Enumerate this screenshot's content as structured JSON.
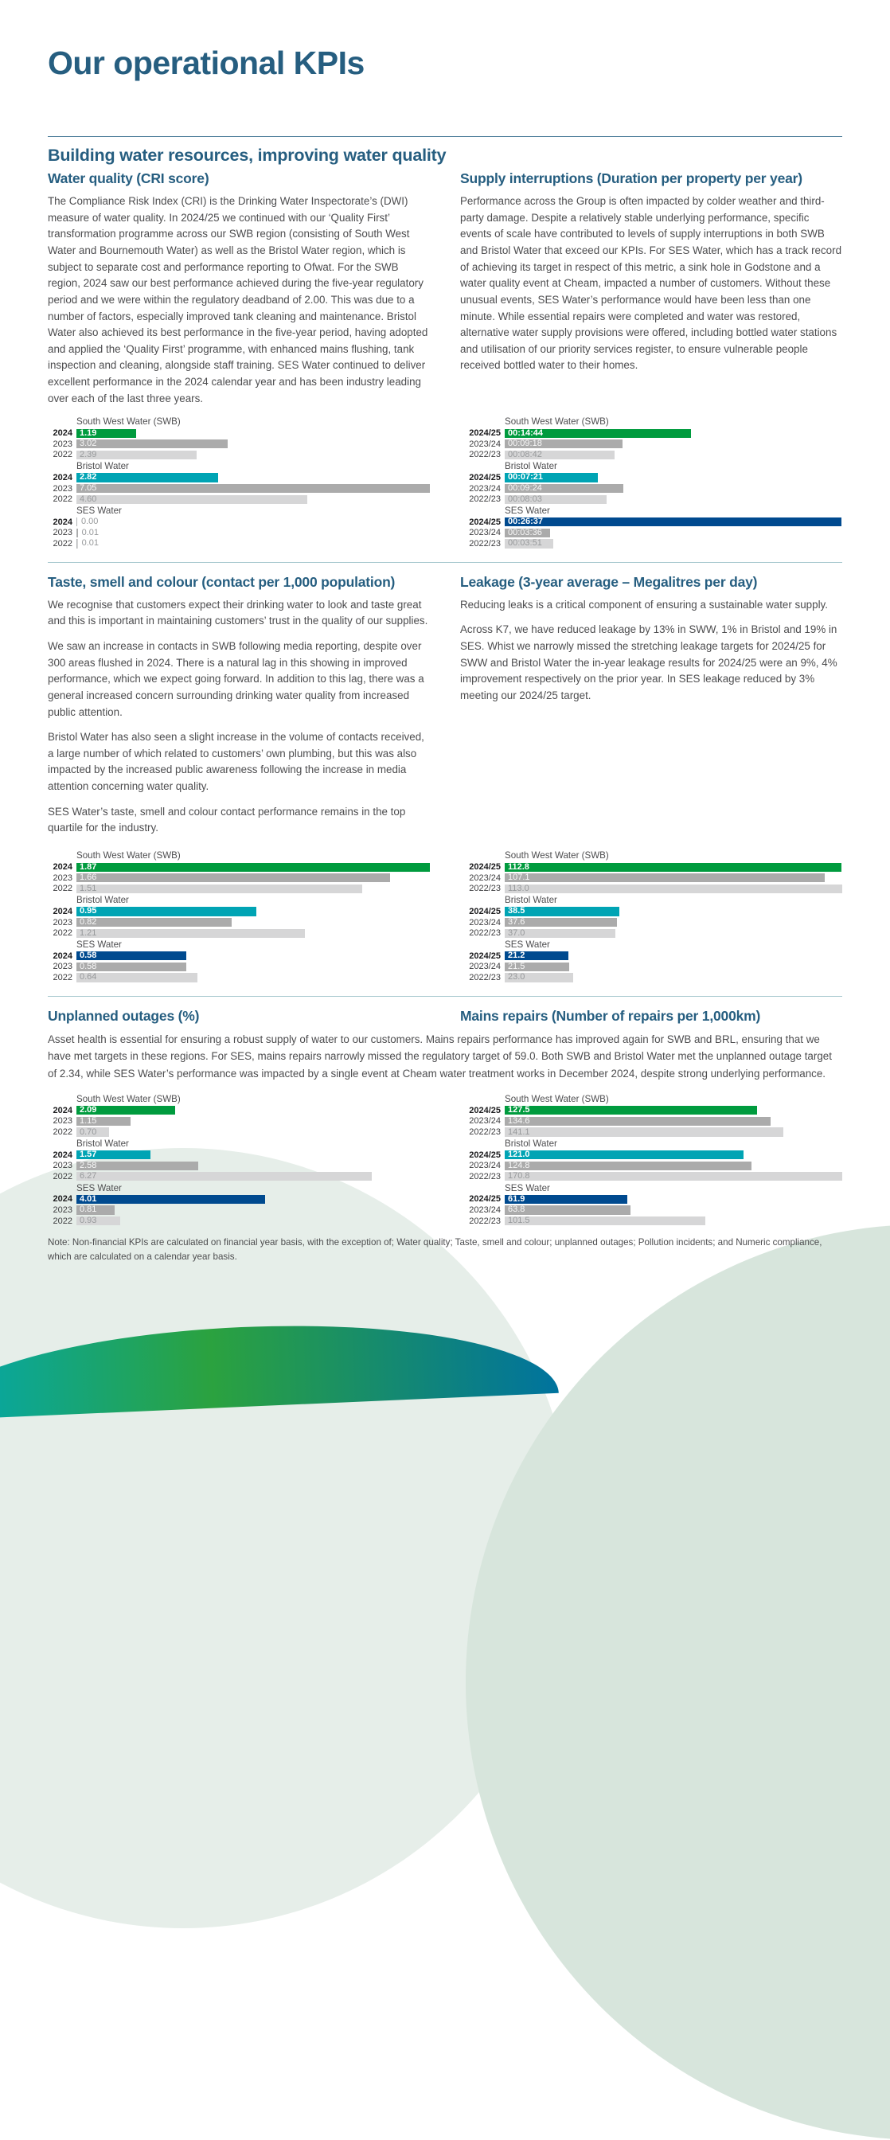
{
  "page": {
    "title": "Our operational KPIs",
    "section_heading": "Building water resources, improving water quality",
    "note": "Note: Non-financial KPIs are calculated on financial year basis, with the exception of; Water quality; Taste, smell and colour; unplanned outages; Pollution incidents; and Numeric compliance, which are calculated on a calendar year basis."
  },
  "colors": {
    "green": "#009b3e",
    "teal": "#00a4b4",
    "blue": "#004a8f",
    "gray": "#ababab",
    "lightgray": "#d6d6d7",
    "heading_blue": "#265e80"
  },
  "sections": [
    {
      "heading": "Water quality (CRI score)",
      "paragraphs": [
        "The Compliance Risk Index (CRI) is the Drinking Water Inspectorate’s (DWI) measure of water quality. In 2024/25 we continued with our ‘Quality First’ transformation programme across our SWB region (consisting of South West Water and Bournemouth Water) as well as the Bristol Water region, which is subject to separate cost and performance reporting to Ofwat. For the SWB region, 2024 saw our best performance achieved during the five-year regulatory period and we were within the regulatory deadband of 2.00. This was due to a number of factors, especially improved tank cleaning and maintenance. Bristol Water also achieved its best performance in the five-year period, having adopted and applied the ‘Quality First’ programme, with enhanced mains flushing, tank inspection and cleaning, alongside staff training. SES Water continued to deliver excellent performance in the 2024 calendar year and has been industry leading over each of the last three years."
      ]
    },
    {
      "heading": "Supply interruptions (Duration per property per year)",
      "paragraphs": [
        "Performance across the Group is often impacted by colder weather and third-party damage. Despite a relatively stable underlying performance, specific events of scale have contributed to levels of supply interruptions in both SWB and Bristol Water that exceed our KPIs. For SES Water, which has a track record of achieving its target in respect of this metric, a sink hole in Godstone and a water quality event at Cheam, impacted a number of customers. Without these unusual events, SES Water’s performance would have been less than one minute. While essential repairs were completed and water was restored, alternative water supply provisions were offered, including bottled water stations and utilisation of our priority services register, to ensure vulnerable people received bottled water to their homes."
      ]
    },
    {
      "heading": "Taste, smell and colour (contact per 1,000 population)",
      "paragraphs": [
        "We recognise that customers expect their drinking water to look and taste great and this is important in maintaining customers’ trust in the quality of our supplies.",
        "We saw an increase in contacts in SWB following media reporting, despite over 300 areas flushed in 2024. There is a natural lag in this showing in improved performance, which we expect going forward. In addition to this lag, there was a general increased concern surrounding drinking water quality from increased public attention.",
        "Bristol Water has also seen a slight increase in the volume of contacts received, a large number of which related to customers’ own plumbing, but this was also impacted by the increased public awareness following the increase in media attention concerning water quality.",
        "SES Water’s taste, smell and colour contact performance remains in the top quartile for the industry."
      ]
    },
    {
      "heading": "Leakage (3-year average – Megalitres per day)",
      "paragraphs": [
        "Reducing leaks is a critical component of ensuring a sustainable water supply.",
        "Across K7, we have reduced leakage by 13% in SWW, 1% in Bristol and 19% in SES. Whist we narrowly missed the stretching leakage targets for 2024/25 for SWW and Bristol Water the in-year leakage results for 2024/25 were an 9%, 4% improvement respectively on the prior year. In SES leakage reduced by 3% meeting our 2024/25 target."
      ]
    },
    {
      "heading": "Unplanned outages (%)",
      "paragraphs": [
        "Asset health is essential for ensuring a robust supply of water to our customers. Mains repairs performance has improved again for SWB and BRL, ensuring that we have met targets in these regions. For SES, mains repairs narrowly missed the regulatory target of 59.0. Both SWB and Bristol Water met the unplanned outage target of 2.34, while SES Water’s performance was impacted by a single event at Cheam water treatment works in December 2024, despite strong underlying performance."
      ]
    },
    {
      "heading": "Mains repairs (Number of repairs per 1,000km)",
      "paragraphs": []
    }
  ],
  "chart_data": [
    {
      "type": "bar",
      "title": "Water quality (CRI score)",
      "axis_max": 7.05,
      "years": [
        "2024",
        "2023",
        "2022"
      ],
      "groups": [
        {
          "name": "South West Water (SWB)",
          "accent": "green",
          "labels": [
            "1.19",
            "3.02",
            "2.39"
          ],
          "values": [
            1.19,
            3.02,
            2.39
          ]
        },
        {
          "name": "Bristol Water",
          "accent": "teal",
          "labels": [
            "2.82",
            "7.05",
            "4.60"
          ],
          "values": [
            2.82,
            7.05,
            4.6
          ]
        },
        {
          "name": "SES Water",
          "accent": "blue",
          "labels": [
            "0.00",
            "0.01",
            "0.01"
          ],
          "values": [
            0.0,
            0.01,
            0.01
          ]
        }
      ]
    },
    {
      "type": "bar",
      "title": "Supply interruptions (Duration per property per year)",
      "axis_max": 1600,
      "unit": "hh:mm:ss (values scaled in seconds)",
      "years": [
        "2024/25",
        "2023/24",
        "2022/23"
      ],
      "groups": [
        {
          "name": "South West Water (SWB)",
          "accent": "green",
          "labels": [
            "00:14:44",
            "00:09:18",
            "00:08:42"
          ],
          "values": [
            884,
            558,
            522
          ]
        },
        {
          "name": "Bristol Water",
          "accent": "teal",
          "labels": [
            "00:07:21",
            "00:09:24",
            "00:08:03"
          ],
          "values": [
            441,
            564,
            483
          ]
        },
        {
          "name": "SES Water",
          "accent": "blue",
          "labels": [
            "00:26:37",
            "00:03:36",
            "00:03:51"
          ],
          "values": [
            1597,
            216,
            231
          ]
        }
      ]
    },
    {
      "type": "bar",
      "title": "Taste, smell and colour (contact per 1,000 population)",
      "axis_max": 1.87,
      "years": [
        "2024",
        "2023",
        "2022"
      ],
      "groups": [
        {
          "name": "South West Water (SWB)",
          "accent": "green",
          "labels": [
            "1.87",
            "1.66",
            "1.51"
          ],
          "values": [
            1.87,
            1.66,
            1.51
          ]
        },
        {
          "name": "Bristol Water",
          "accent": "teal",
          "labels": [
            "0.95",
            "0.82",
            "1.21"
          ],
          "values": [
            0.95,
            0.82,
            1.21
          ]
        },
        {
          "name": "SES Water",
          "accent": "blue",
          "labels": [
            "0.58",
            "0.58",
            "0.64"
          ],
          "values": [
            0.58,
            0.58,
            0.64
          ]
        }
      ]
    },
    {
      "type": "bar",
      "title": "Leakage (3-year average – Megalitres per day)",
      "axis_max": 113.0,
      "years": [
        "2024/25",
        "2023/24",
        "2022/23"
      ],
      "groups": [
        {
          "name": "South West Water (SWB)",
          "accent": "green",
          "labels": [
            "112.8",
            "107.1",
            "113.0"
          ],
          "values": [
            112.8,
            107.1,
            113.0
          ]
        },
        {
          "name": "Bristol Water",
          "accent": "teal",
          "labels": [
            "38.5",
            "37.6",
            "37.0"
          ],
          "values": [
            38.5,
            37.6,
            37.0
          ]
        },
        {
          "name": "SES Water",
          "accent": "blue",
          "labels": [
            "21.2",
            "21.5",
            "23.0"
          ],
          "values": [
            21.2,
            21.5,
            23.0
          ]
        }
      ]
    },
    {
      "type": "bar",
      "title": "Unplanned outages (%)",
      "axis_max": 7.5,
      "years": [
        "2024",
        "2023",
        "2022"
      ],
      "groups": [
        {
          "name": "South West Water (SWB)",
          "accent": "green",
          "labels": [
            "2.09",
            "1.15",
            "0.70"
          ],
          "values": [
            2.09,
            1.15,
            0.7
          ]
        },
        {
          "name": "Bristol Water",
          "accent": "teal",
          "labels": [
            "1.57",
            "2.58",
            "6.27"
          ],
          "values": [
            1.57,
            2.58,
            6.27
          ]
        },
        {
          "name": "SES Water",
          "accent": "blue",
          "labels": [
            "4.01",
            "0.81",
            "0.93"
          ],
          "values": [
            4.01,
            0.81,
            0.93
          ]
        }
      ]
    },
    {
      "type": "bar",
      "title": "Mains repairs (Number of repairs per 1,000km)",
      "axis_max": 170.8,
      "years": [
        "2024/25",
        "2023/24",
        "2022/23"
      ],
      "groups": [
        {
          "name": "South West Water (SWB)",
          "accent": "green",
          "labels": [
            "127.5",
            "134.6",
            "141.1"
          ],
          "values": [
            127.5,
            134.6,
            141.1
          ]
        },
        {
          "name": "Bristol Water",
          "accent": "teal",
          "labels": [
            "121.0",
            "124.8",
            "170.8"
          ],
          "values": [
            121.0,
            124.8,
            170.8
          ]
        },
        {
          "name": "SES Water",
          "accent": "blue",
          "labels": [
            "61.9",
            "63.8",
            "101.5"
          ],
          "values": [
            61.9,
            63.8,
            101.5
          ]
        }
      ]
    }
  ]
}
